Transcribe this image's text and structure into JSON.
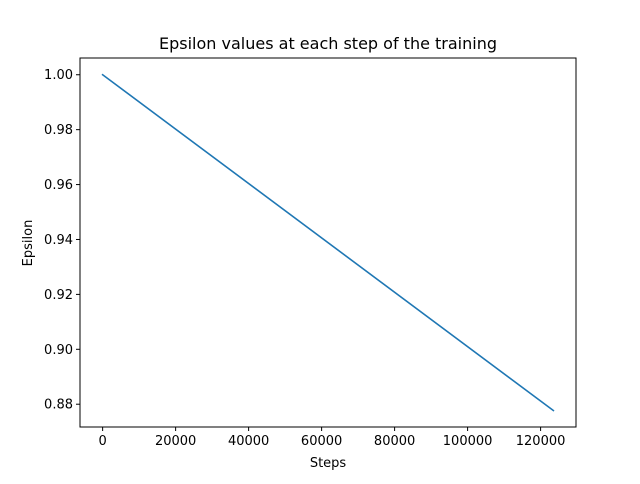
{
  "chart_data": {
    "type": "line",
    "title": "Epsilon values at each step of the training",
    "xlabel": "Steps",
    "ylabel": "Epsilon",
    "xlim": [
      -6200,
      129700
    ],
    "ylim": [
      0.8717,
      1.0061
    ],
    "xticks": [
      0,
      20000,
      40000,
      60000,
      80000,
      100000,
      120000
    ],
    "xtick_labels": [
      "0",
      "20000",
      "40000",
      "60000",
      "80000",
      "100000",
      "120000"
    ],
    "yticks": [
      0.88,
      0.9,
      0.92,
      0.94,
      0.96,
      0.98,
      1.0
    ],
    "ytick_labels": [
      "0.88",
      "0.90",
      "0.92",
      "0.94",
      "0.96",
      "0.98",
      "1.00"
    ],
    "grid": false,
    "series": [
      {
        "color": "#1f77b4",
        "x": [
          0,
          123500
        ],
        "y": [
          1.0,
          0.8777
        ]
      }
    ]
  }
}
